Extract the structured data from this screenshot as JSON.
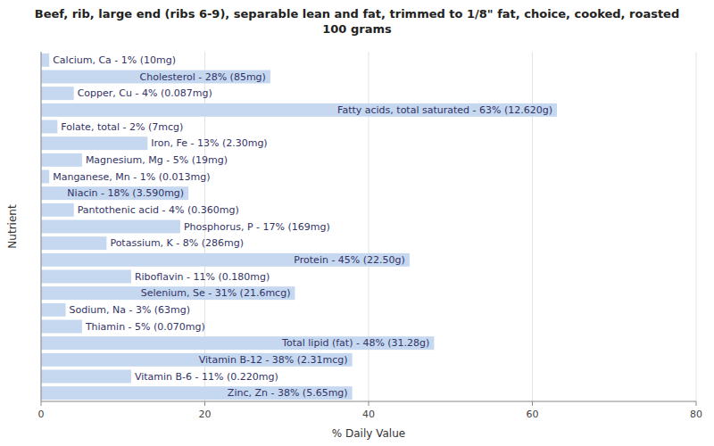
{
  "chart_data": {
    "type": "bar",
    "orientation": "horizontal",
    "title": "Beef, rib, large end (ribs 6-9), separable lean and fat, trimmed to 1/8\" fat, choice, cooked, roasted\n100 grams",
    "xlabel": "% Daily Value",
    "ylabel": "Nutrient",
    "categories": [
      "Calcium, Ca - 1% (10mg)",
      "Cholesterol - 28% (85mg)",
      "Copper, Cu - 4% (0.087mg)",
      "Fatty acids, total saturated - 63% (12.620g)",
      "Folate, total - 2% (7mcg)",
      "Iron, Fe - 13% (2.30mg)",
      "Magnesium, Mg - 5% (19mg)",
      "Manganese, Mn - 1% (0.013mg)",
      "Niacin - 18% (3.590mg)",
      "Pantothenic acid - 4% (0.360mg)",
      "Phosphorus, P - 17% (169mg)",
      "Potassium, K - 8% (286mg)",
      "Protein - 45% (22.50g)",
      "Riboflavin - 11% (0.180mg)",
      "Selenium, Se - 31% (21.6mcg)",
      "Sodium, Na - 3% (63mg)",
      "Thiamin - 5% (0.070mg)",
      "Total lipid (fat) - 48% (31.28g)",
      "Vitamin B-12 - 38% (2.31mcg)",
      "Vitamin B-6 - 11% (0.220mg)",
      "Zinc, Zn - 38% (5.65mg)"
    ],
    "values": [
      1,
      28,
      4,
      63,
      2,
      13,
      5,
      1,
      18,
      4,
      17,
      8,
      45,
      11,
      31,
      3,
      5,
      48,
      38,
      11,
      38
    ],
    "color": "#c5d8f0",
    "xlim": [
      0,
      80
    ],
    "xticks": [
      0,
      20,
      40,
      60,
      80
    ],
    "grid": true,
    "tick_labels": "x"
  }
}
